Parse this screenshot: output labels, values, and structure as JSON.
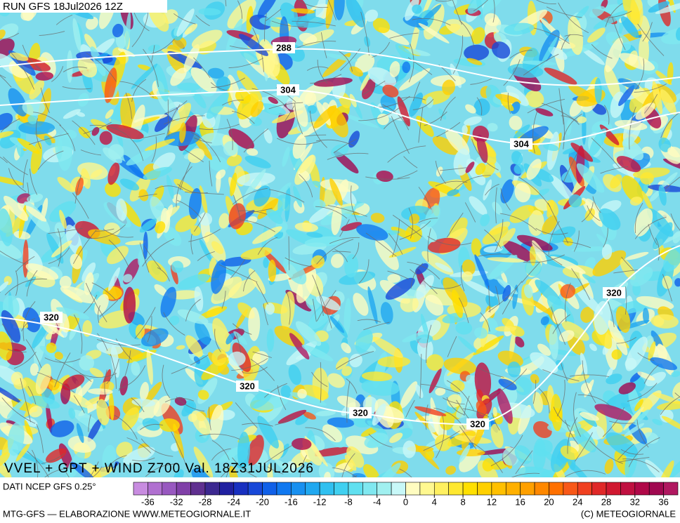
{
  "header": {
    "run": "RUN GFS 18Jul2026 12Z"
  },
  "map": {
    "title": "VVEL + GPT + WIND Z700 Val. 18Z31JUL2026",
    "contour_labels": [
      288,
      304,
      304,
      320,
      320,
      320,
      320,
      320
    ]
  },
  "colorbar": {
    "source": "DATI NCEP GFS 0.25°",
    "lim": [
      -38,
      38
    ],
    "ticks": [
      -36,
      -32,
      -28,
      -24,
      -20,
      -16,
      -12,
      -8,
      -4,
      0,
      4,
      8,
      12,
      16,
      20,
      24,
      28,
      32,
      36
    ],
    "colors": [
      "#c88ce0",
      "#b070d0",
      "#9858c0",
      "#8040a8",
      "#603090",
      "#3c2890",
      "#2020a0",
      "#1830c0",
      "#1848d8",
      "#1060e8",
      "#1078f0",
      "#1890f0",
      "#20a8f0",
      "#30c0f0",
      "#40d0f0",
      "#60e0f0",
      "#80e8f0",
      "#a0f0f0",
      "#c8f8f8",
      "#fffcc0",
      "#fff890",
      "#fff060",
      "#ffe830",
      "#ffe000",
      "#ffd000",
      "#ffc000",
      "#ffb000",
      "#ffa000",
      "#ff8800",
      "#ff7000",
      "#f85818",
      "#f04020",
      "#e02828",
      "#d01830",
      "#c01040",
      "#b00848",
      "#a00850",
      "#b01860"
    ]
  },
  "footer": {
    "left": "MTG-GFS — ELABORAZIONE WWW.METEOGIORNALE.IT",
    "right": "(C) METEOGIORNALE"
  }
}
